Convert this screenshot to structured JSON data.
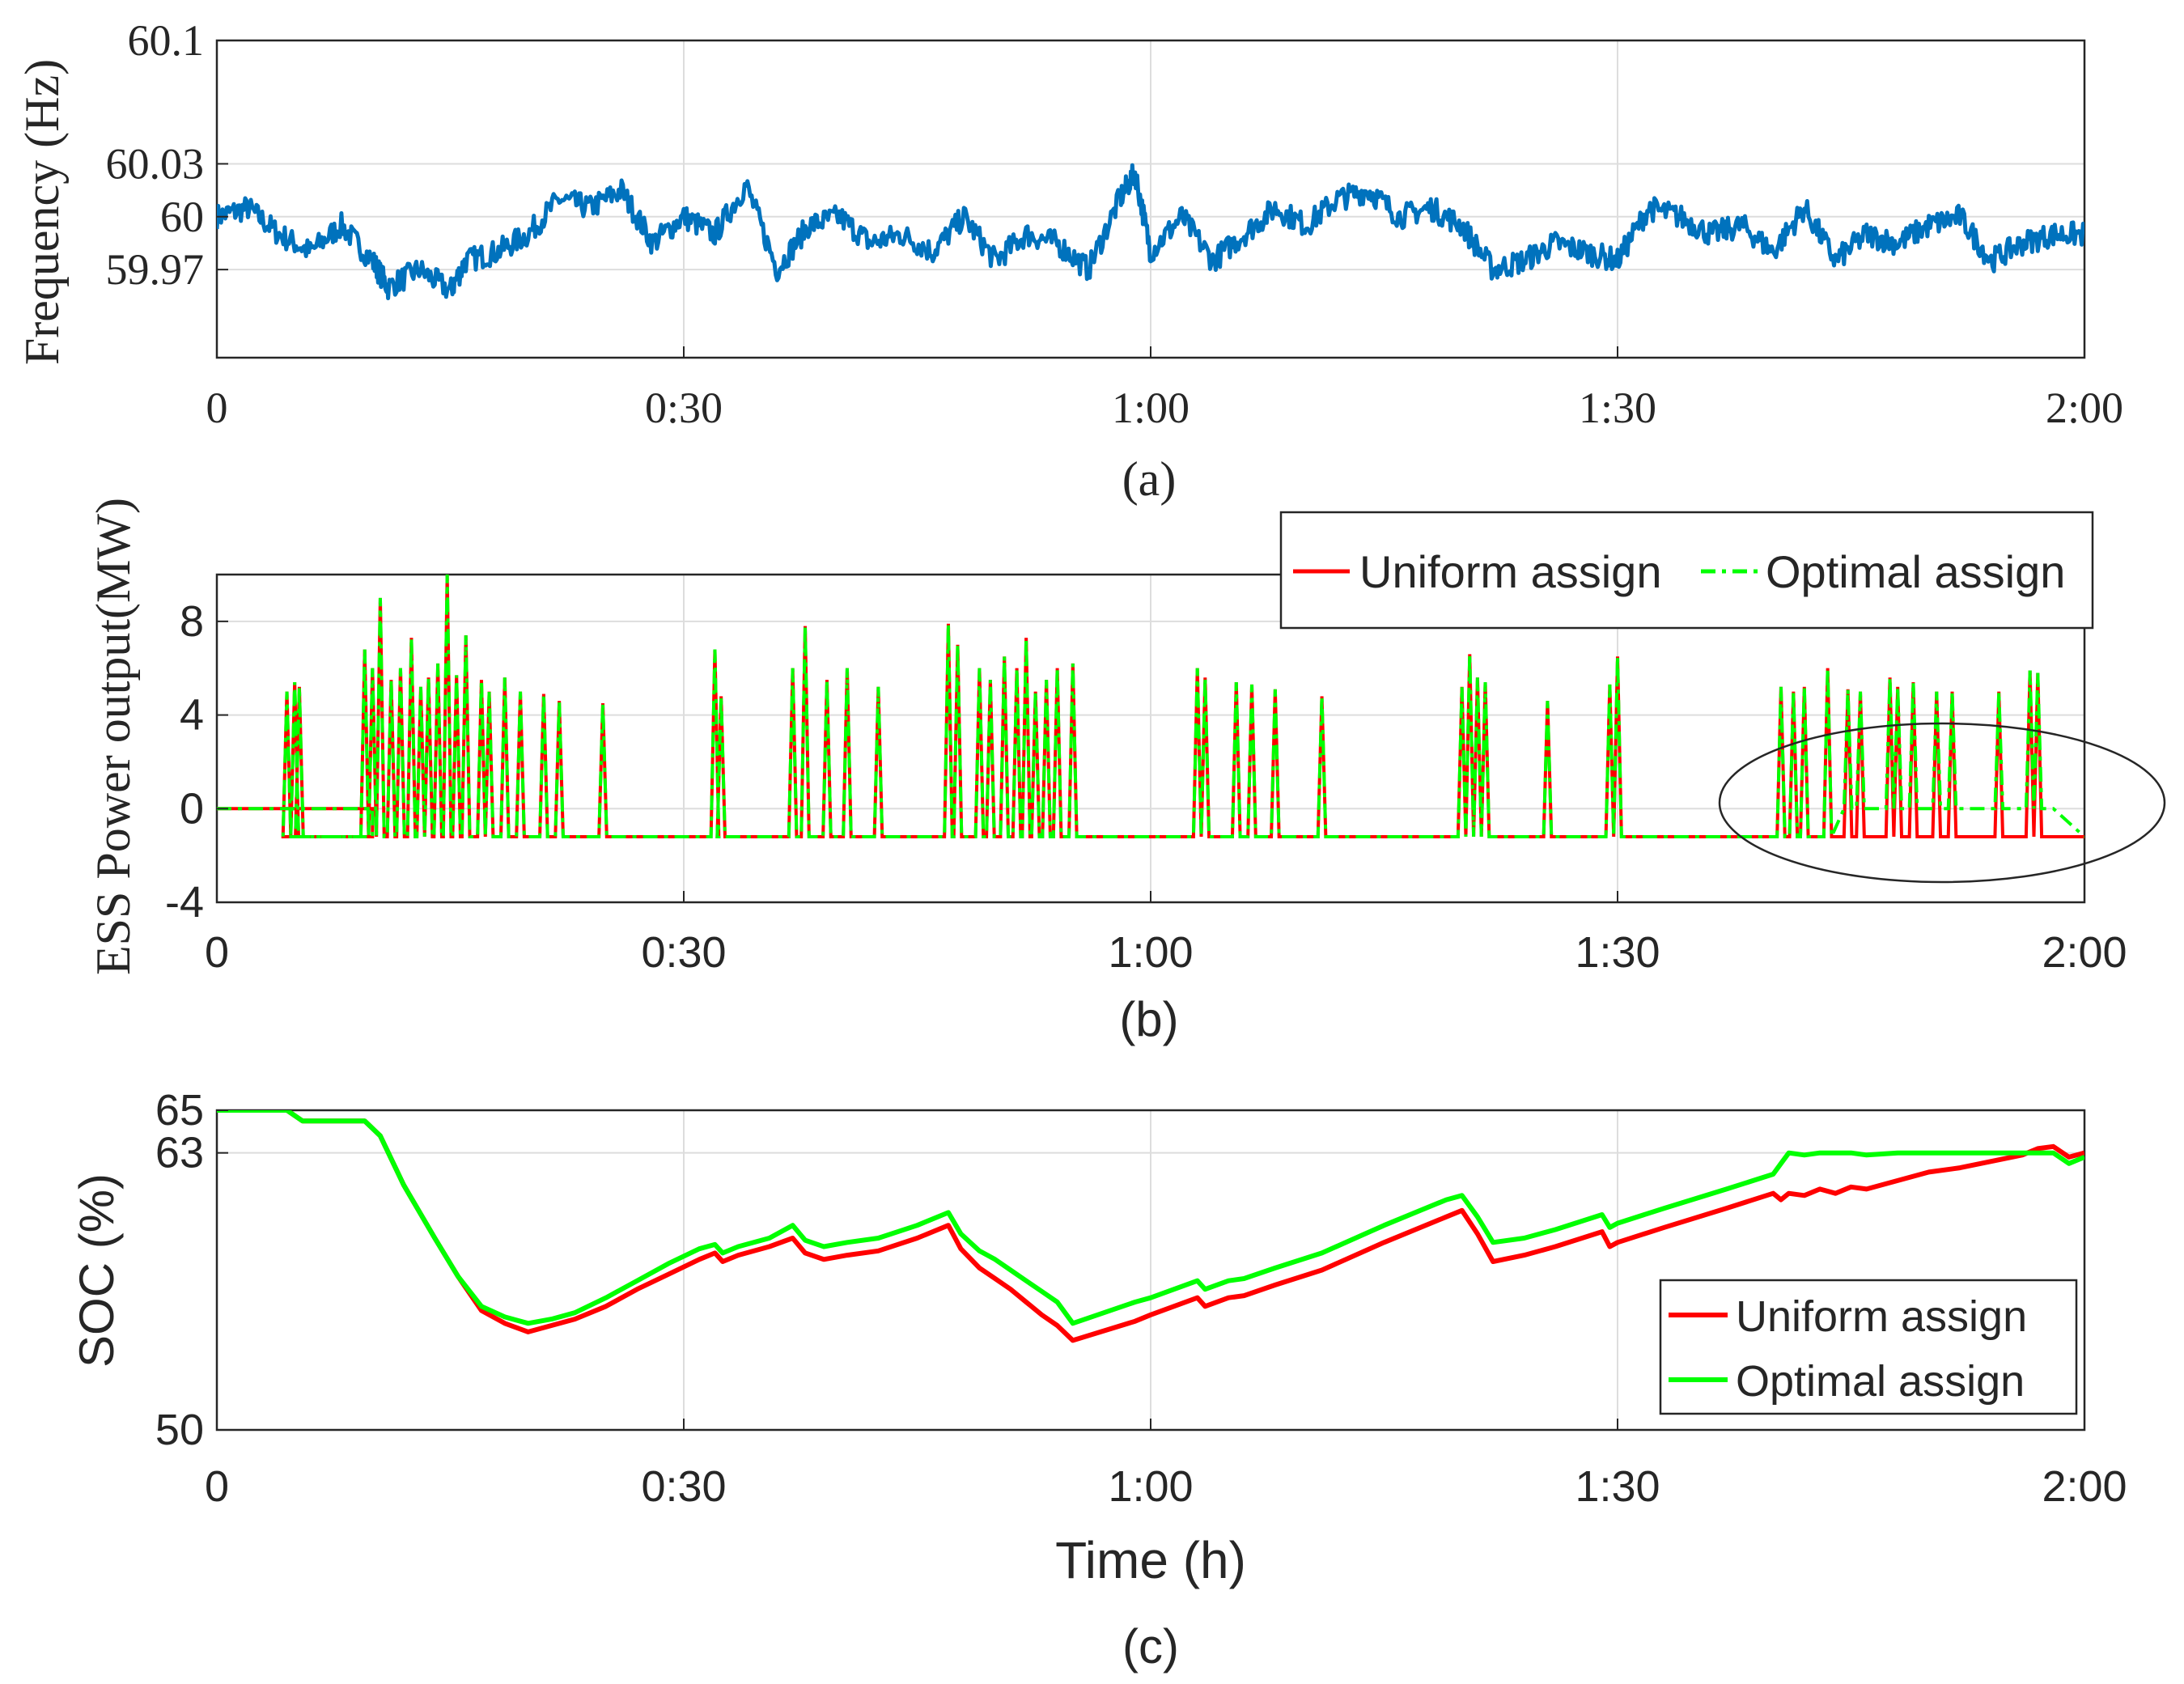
{
  "colors": {
    "frequency": "#0072BD",
    "uniform": "#FF0000",
    "optimal": "#00FF00",
    "grid": "#DDDDDD",
    "axis": "#262626"
  },
  "chart_data": [
    {
      "id": "a",
      "type": "line",
      "caption": "(a)",
      "ylabel": "Frequency (Hz)",
      "xlabel": "",
      "xlim": [
        0,
        120
      ],
      "ylim": [
        59.92,
        60.1
      ],
      "x_ticks": [
        0,
        30,
        60,
        90,
        120
      ],
      "x_tick_labels": [
        "0",
        "0:30",
        "1:00",
        "1:30",
        "2:00"
      ],
      "y_ticks": [
        59.97,
        60,
        60.03,
        60.1
      ],
      "y_tick_labels": [
        "59.97",
        "60",
        "60.03",
        "60.1"
      ],
      "series": [
        {
          "name": "Frequency",
          "x": [
            0,
            2,
            4,
            6,
            8,
            10,
            11,
            13,
            15,
            16,
            18,
            20,
            22,
            24,
            26,
            28,
            30,
            32,
            34,
            36,
            38,
            40,
            42,
            44,
            46,
            48,
            50,
            52,
            54,
            56,
            58,
            59,
            60,
            62,
            64,
            66,
            68,
            70,
            72,
            74,
            76,
            78,
            80,
            82,
            84,
            86,
            88,
            90,
            92,
            94,
            96,
            98,
            100,
            102,
            104,
            106,
            108,
            110,
            112,
            114,
            116,
            118,
            120
          ],
          "values": [
            60.0,
            60.005,
            59.99,
            59.98,
            59.995,
            59.975,
            59.96,
            59.97,
            59.958,
            59.975,
            59.98,
            59.99,
            60.01,
            60.005,
            60.015,
            59.985,
            60.0,
            59.99,
            60.018,
            59.97,
            59.995,
            60.0,
            59.985,
            59.99,
            59.98,
            60.0,
            59.975,
            59.99,
            59.985,
            59.97,
            60.01,
            60.025,
            59.98,
            60.0,
            59.975,
            59.99,
            60.005,
            59.995,
            60.01,
            60.015,
            60.0,
            60.005,
            59.995,
            59.97,
            59.975,
            59.985,
            59.98,
            59.975,
            60.005,
            60.0,
            59.99,
            59.995,
            59.98,
            60.005,
            59.975,
            59.99,
            59.985,
            59.995,
            60.0,
            59.975,
            59.985,
            59.99,
            59.99
          ]
        }
      ]
    },
    {
      "id": "b",
      "type": "line",
      "caption": "(b)",
      "ylabel": "ESS Power output(MW)",
      "xlabel": "",
      "xlim": [
        0,
        120
      ],
      "ylim": [
        -4,
        10
      ],
      "x_ticks": [
        0,
        30,
        60,
        90,
        120
      ],
      "x_tick_labels": [
        "0",
        "0:30",
        "1:00",
        "1:30",
        "2:00"
      ],
      "y_ticks": [
        -4,
        0,
        4,
        8
      ],
      "y_tick_labels": [
        "-4",
        "0",
        "4",
        "8"
      ],
      "legend": {
        "position": "top-right",
        "entries": [
          "Uniform assign",
          "Optimal assign"
        ]
      },
      "baseline_before_start": 0,
      "baseline_after": -1.2,
      "baseline_start": 10,
      "ellipse_annotation": {
        "x_range": [
          95,
          125
        ],
        "y_range": [
          -3.4,
          3.5
        ]
      },
      "series": [
        {
          "name": "Uniform assign",
          "spike_x": [
            4.5,
            5.0,
            5.3,
            9.5,
            10.0,
            10.5,
            11.2,
            11.8,
            12.5,
            13.1,
            13.6,
            14.2,
            14.8,
            15.4,
            16.0,
            17.0,
            17.5,
            18.5,
            19.5,
            21.0,
            22.0,
            24.8,
            32.0,
            32.4,
            37.0,
            37.8,
            39.2,
            40.5,
            42.5,
            47.0,
            47.6,
            49.0,
            49.7,
            50.6,
            51.4,
            52.0,
            52.6,
            53.3,
            54.0,
            55.0,
            63.0,
            63.5,
            65.5,
            66.5,
            68.0,
            71.0,
            80.0,
            80.5,
            81.0,
            81.5,
            85.5,
            89.5,
            90.0,
            100.5,
            101.3,
            102.0,
            103.5,
            104.8,
            105.6,
            107.5,
            108.0,
            109.0,
            110.5,
            111.5,
            114.5,
            116.5,
            117.0
          ],
          "spike_values": [
            5.0,
            5.4,
            5.2,
            6.8,
            6.0,
            9.0,
            5.5,
            6.0,
            7.3,
            5.2,
            5.6,
            6.2,
            10.0,
            5.7,
            7.4,
            5.5,
            5.0,
            5.6,
            5.0,
            4.9,
            4.6,
            4.5,
            6.8,
            4.8,
            6.0,
            7.8,
            5.5,
            6.0,
            5.2,
            7.9,
            7.0,
            6.0,
            5.5,
            6.5,
            6.0,
            7.3,
            5.0,
            5.5,
            6.0,
            6.2,
            6.0,
            5.6,
            5.4,
            5.3,
            5.1,
            4.8,
            5.2,
            6.6,
            5.6,
            5.4,
            4.6,
            5.3,
            6.5,
            5.2,
            5.0,
            5.2,
            6.0,
            5.1,
            5.0,
            5.6,
            5.2,
            5.4,
            5.0,
            5.0,
            5.0,
            5.9,
            5.8
          ],
          "tail_level": -1.2
        },
        {
          "name": "Optimal assign",
          "spike_x": [
            4.5,
            5.0,
            5.3,
            9.5,
            10.0,
            10.5,
            11.2,
            11.8,
            12.5,
            13.1,
            13.6,
            14.2,
            14.8,
            15.4,
            16.0,
            17.0,
            17.5,
            18.5,
            19.5,
            21.0,
            22.0,
            24.8,
            32.0,
            32.4,
            37.0,
            37.8,
            39.2,
            40.5,
            42.5,
            47.0,
            47.6,
            49.0,
            49.7,
            50.6,
            51.4,
            52.0,
            52.6,
            53.3,
            54.0,
            55.0,
            63.0,
            63.5,
            65.5,
            66.5,
            68.0,
            71.0,
            80.0,
            80.5,
            81.0,
            81.5,
            85.5,
            89.5,
            90.0,
            100.5,
            101.3,
            102.0,
            103.5,
            104.8,
            105.6,
            107.5,
            108.0,
            109.0,
            110.5,
            111.5,
            114.5,
            116.5,
            117.0
          ],
          "spike_values": [
            5.0,
            5.4,
            5.2,
            6.8,
            6.0,
            9.0,
            5.5,
            6.0,
            7.3,
            5.2,
            5.6,
            6.2,
            10.0,
            5.7,
            7.4,
            5.5,
            5.0,
            5.6,
            5.0,
            4.9,
            4.6,
            4.5,
            6.8,
            4.8,
            6.0,
            7.8,
            5.5,
            6.0,
            5.2,
            7.9,
            7.0,
            6.0,
            5.5,
            6.5,
            6.0,
            7.3,
            5.0,
            5.5,
            6.0,
            6.2,
            6.0,
            5.6,
            5.4,
            5.3,
            5.1,
            4.8,
            5.2,
            6.6,
            5.6,
            5.4,
            4.6,
            5.3,
            6.5,
            5.2,
            5.0,
            5.2,
            6.0,
            5.1,
            5.0,
            5.6,
            5.2,
            5.4,
            5.0,
            5.0,
            5.0,
            5.9,
            5.8
          ],
          "tail_level": 0.0,
          "tail_start": 103.5
        }
      ]
    },
    {
      "id": "c",
      "type": "line",
      "caption": "(c)",
      "ylabel": "SOC (%)",
      "xlabel": "Time (h)",
      "xlim": [
        0,
        120
      ],
      "ylim": [
        50,
        65
      ],
      "x_ticks": [
        0,
        30,
        60,
        90,
        120
      ],
      "x_tick_labels": [
        "0",
        "0:30",
        "1:00",
        "1:30",
        "2:00"
      ],
      "y_ticks": [
        50,
        63,
        65
      ],
      "y_tick_labels": [
        "50",
        "63",
        "65"
      ],
      "legend": {
        "position": "bottom-right",
        "entries": [
          "Uniform assign",
          "Optimal assign"
        ]
      },
      "series": [
        {
          "name": "Uniform assign",
          "x": [
            0,
            4.5,
            5.5,
            9.5,
            10.5,
            12,
            14,
            15.5,
            17,
            18.5,
            20,
            21.5,
            23,
            25,
            27,
            29,
            31,
            32,
            32.5,
            33.5,
            35.5,
            37,
            37.8,
            39,
            40.5,
            42.5,
            45,
            47,
            47.8,
            49,
            50,
            51,
            52,
            53,
            54,
            55,
            59,
            60,
            63,
            63.5,
            65,
            66,
            68,
            71,
            75,
            79,
            80,
            81,
            82,
            84,
            86,
            89,
            89.5,
            90,
            93,
            97,
            100,
            100.5,
            101,
            102,
            103,
            104,
            105,
            106,
            108,
            110,
            112,
            114,
            116,
            117,
            118,
            119,
            120
          ],
          "values": [
            65.0,
            65.0,
            64.5,
            64.5,
            63.8,
            61.5,
            59.0,
            57.2,
            55.6,
            55.0,
            54.6,
            54.9,
            55.2,
            55.8,
            56.6,
            57.3,
            58.0,
            58.3,
            57.9,
            58.2,
            58.6,
            59.0,
            58.3,
            58.0,
            58.2,
            58.4,
            59.0,
            59.6,
            58.5,
            57.6,
            57.1,
            56.6,
            56.0,
            55.4,
            54.9,
            54.2,
            55.1,
            55.4,
            56.2,
            55.8,
            56.2,
            56.3,
            56.8,
            57.5,
            58.8,
            60.0,
            60.3,
            59.2,
            57.9,
            58.2,
            58.6,
            59.3,
            58.6,
            58.8,
            59.5,
            60.4,
            61.1,
            60.8,
            61.1,
            61.0,
            61.3,
            61.1,
            61.4,
            61.3,
            61.7,
            62.1,
            62.3,
            62.6,
            62.9,
            63.2,
            63.3,
            62.8,
            63.0
          ]
        },
        {
          "name": "Optimal assign",
          "x": [
            0,
            4.5,
            5.5,
            9.5,
            10.5,
            12,
            14,
            15.5,
            17,
            18.5,
            20,
            21.5,
            23,
            25,
            27,
            29,
            31,
            32,
            32.5,
            33.5,
            35.5,
            37,
            37.8,
            39,
            40.5,
            42.5,
            45,
            47,
            47.8,
            49,
            50,
            51,
            52,
            53,
            54,
            55,
            59,
            60,
            63,
            63.5,
            65,
            66,
            68,
            71,
            75,
            79,
            80,
            81,
            82,
            84,
            86,
            89,
            89.5,
            90,
            93,
            97,
            100,
            100.5,
            101,
            102,
            103,
            104,
            105,
            106,
            108,
            110,
            112,
            114,
            116,
            117,
            118,
            119,
            120
          ],
          "values": [
            65.0,
            65.0,
            64.5,
            64.5,
            63.8,
            61.5,
            59.0,
            57.2,
            55.8,
            55.3,
            55.0,
            55.2,
            55.5,
            56.2,
            57.0,
            57.8,
            58.5,
            58.7,
            58.3,
            58.6,
            59.0,
            59.6,
            58.9,
            58.6,
            58.8,
            59.0,
            59.6,
            60.2,
            59.2,
            58.4,
            58.0,
            57.5,
            57.0,
            56.5,
            56.0,
            55.0,
            56.0,
            56.2,
            57.0,
            56.6,
            57.0,
            57.1,
            57.6,
            58.3,
            59.6,
            60.8,
            61.0,
            60.0,
            58.8,
            59.0,
            59.4,
            60.1,
            59.5,
            59.7,
            60.4,
            61.3,
            62.0,
            62.5,
            63.0,
            62.9,
            63.0,
            63.0,
            63.0,
            62.9,
            63.0,
            63.0,
            63.0,
            63.0,
            63.0,
            63.0,
            63.0,
            62.5,
            62.8
          ]
        }
      ]
    }
  ]
}
